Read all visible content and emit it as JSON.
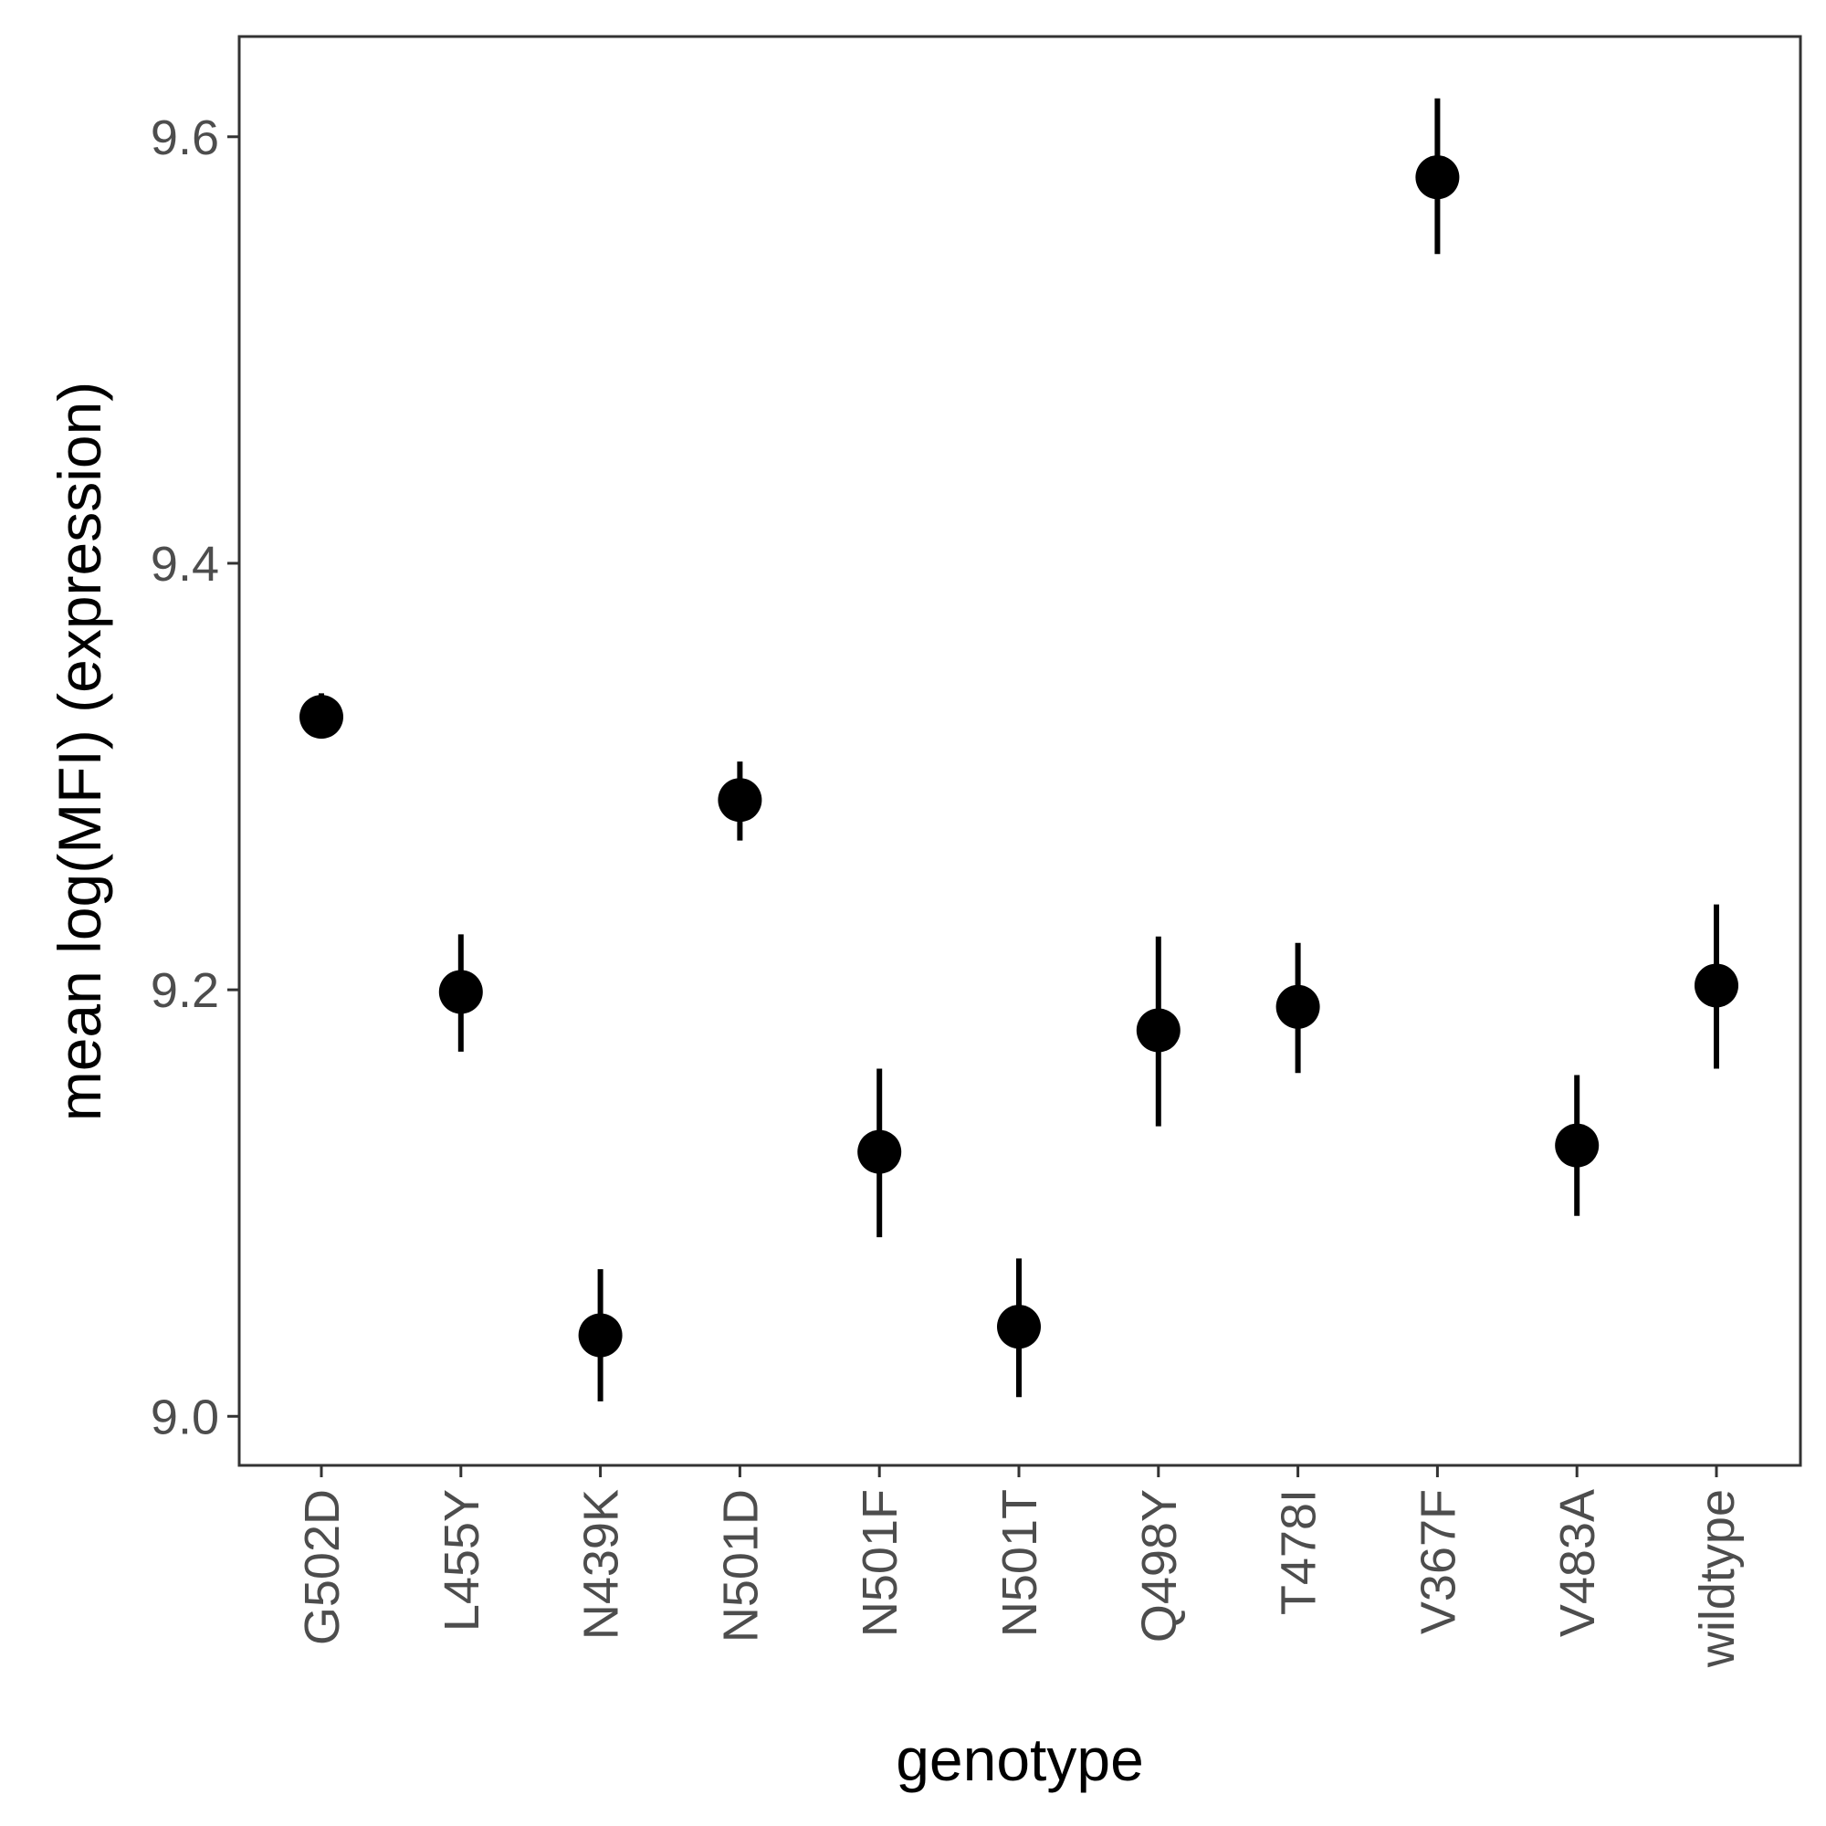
{
  "chart_data": {
    "type": "scatter",
    "subtype": "point-with-error-bars",
    "title": "",
    "xlabel": "genotype",
    "ylabel": "mean log(MFI) (expression)",
    "ylim": [
      8.977,
      9.647
    ],
    "y_ticks": [
      "9.0",
      "9.2",
      "9.4",
      "9.6"
    ],
    "grid": false,
    "legend": "none",
    "colors": {
      "point": "#000000",
      "axis": "#333333",
      "tick_text": "#4d4d4d"
    },
    "categories": [
      "G502D",
      "L455Y",
      "N439K",
      "N501D",
      "N501F",
      "N501T",
      "Q498Y",
      "T478I",
      "V367F",
      "V483A",
      "wildtype"
    ],
    "values": [
      9.328,
      9.199,
      9.038,
      9.289,
      9.124,
      9.042,
      9.181,
      9.192,
      9.581,
      9.127,
      9.202
    ],
    "lower": [
      9.318,
      9.171,
      9.007,
      9.27,
      9.084,
      9.009,
      9.136,
      9.161,
      9.545,
      9.094,
      9.163
    ],
    "upper": [
      9.339,
      9.226,
      9.069,
      9.307,
      9.163,
      9.074,
      9.225,
      9.222,
      9.618,
      9.16,
      9.24
    ]
  }
}
